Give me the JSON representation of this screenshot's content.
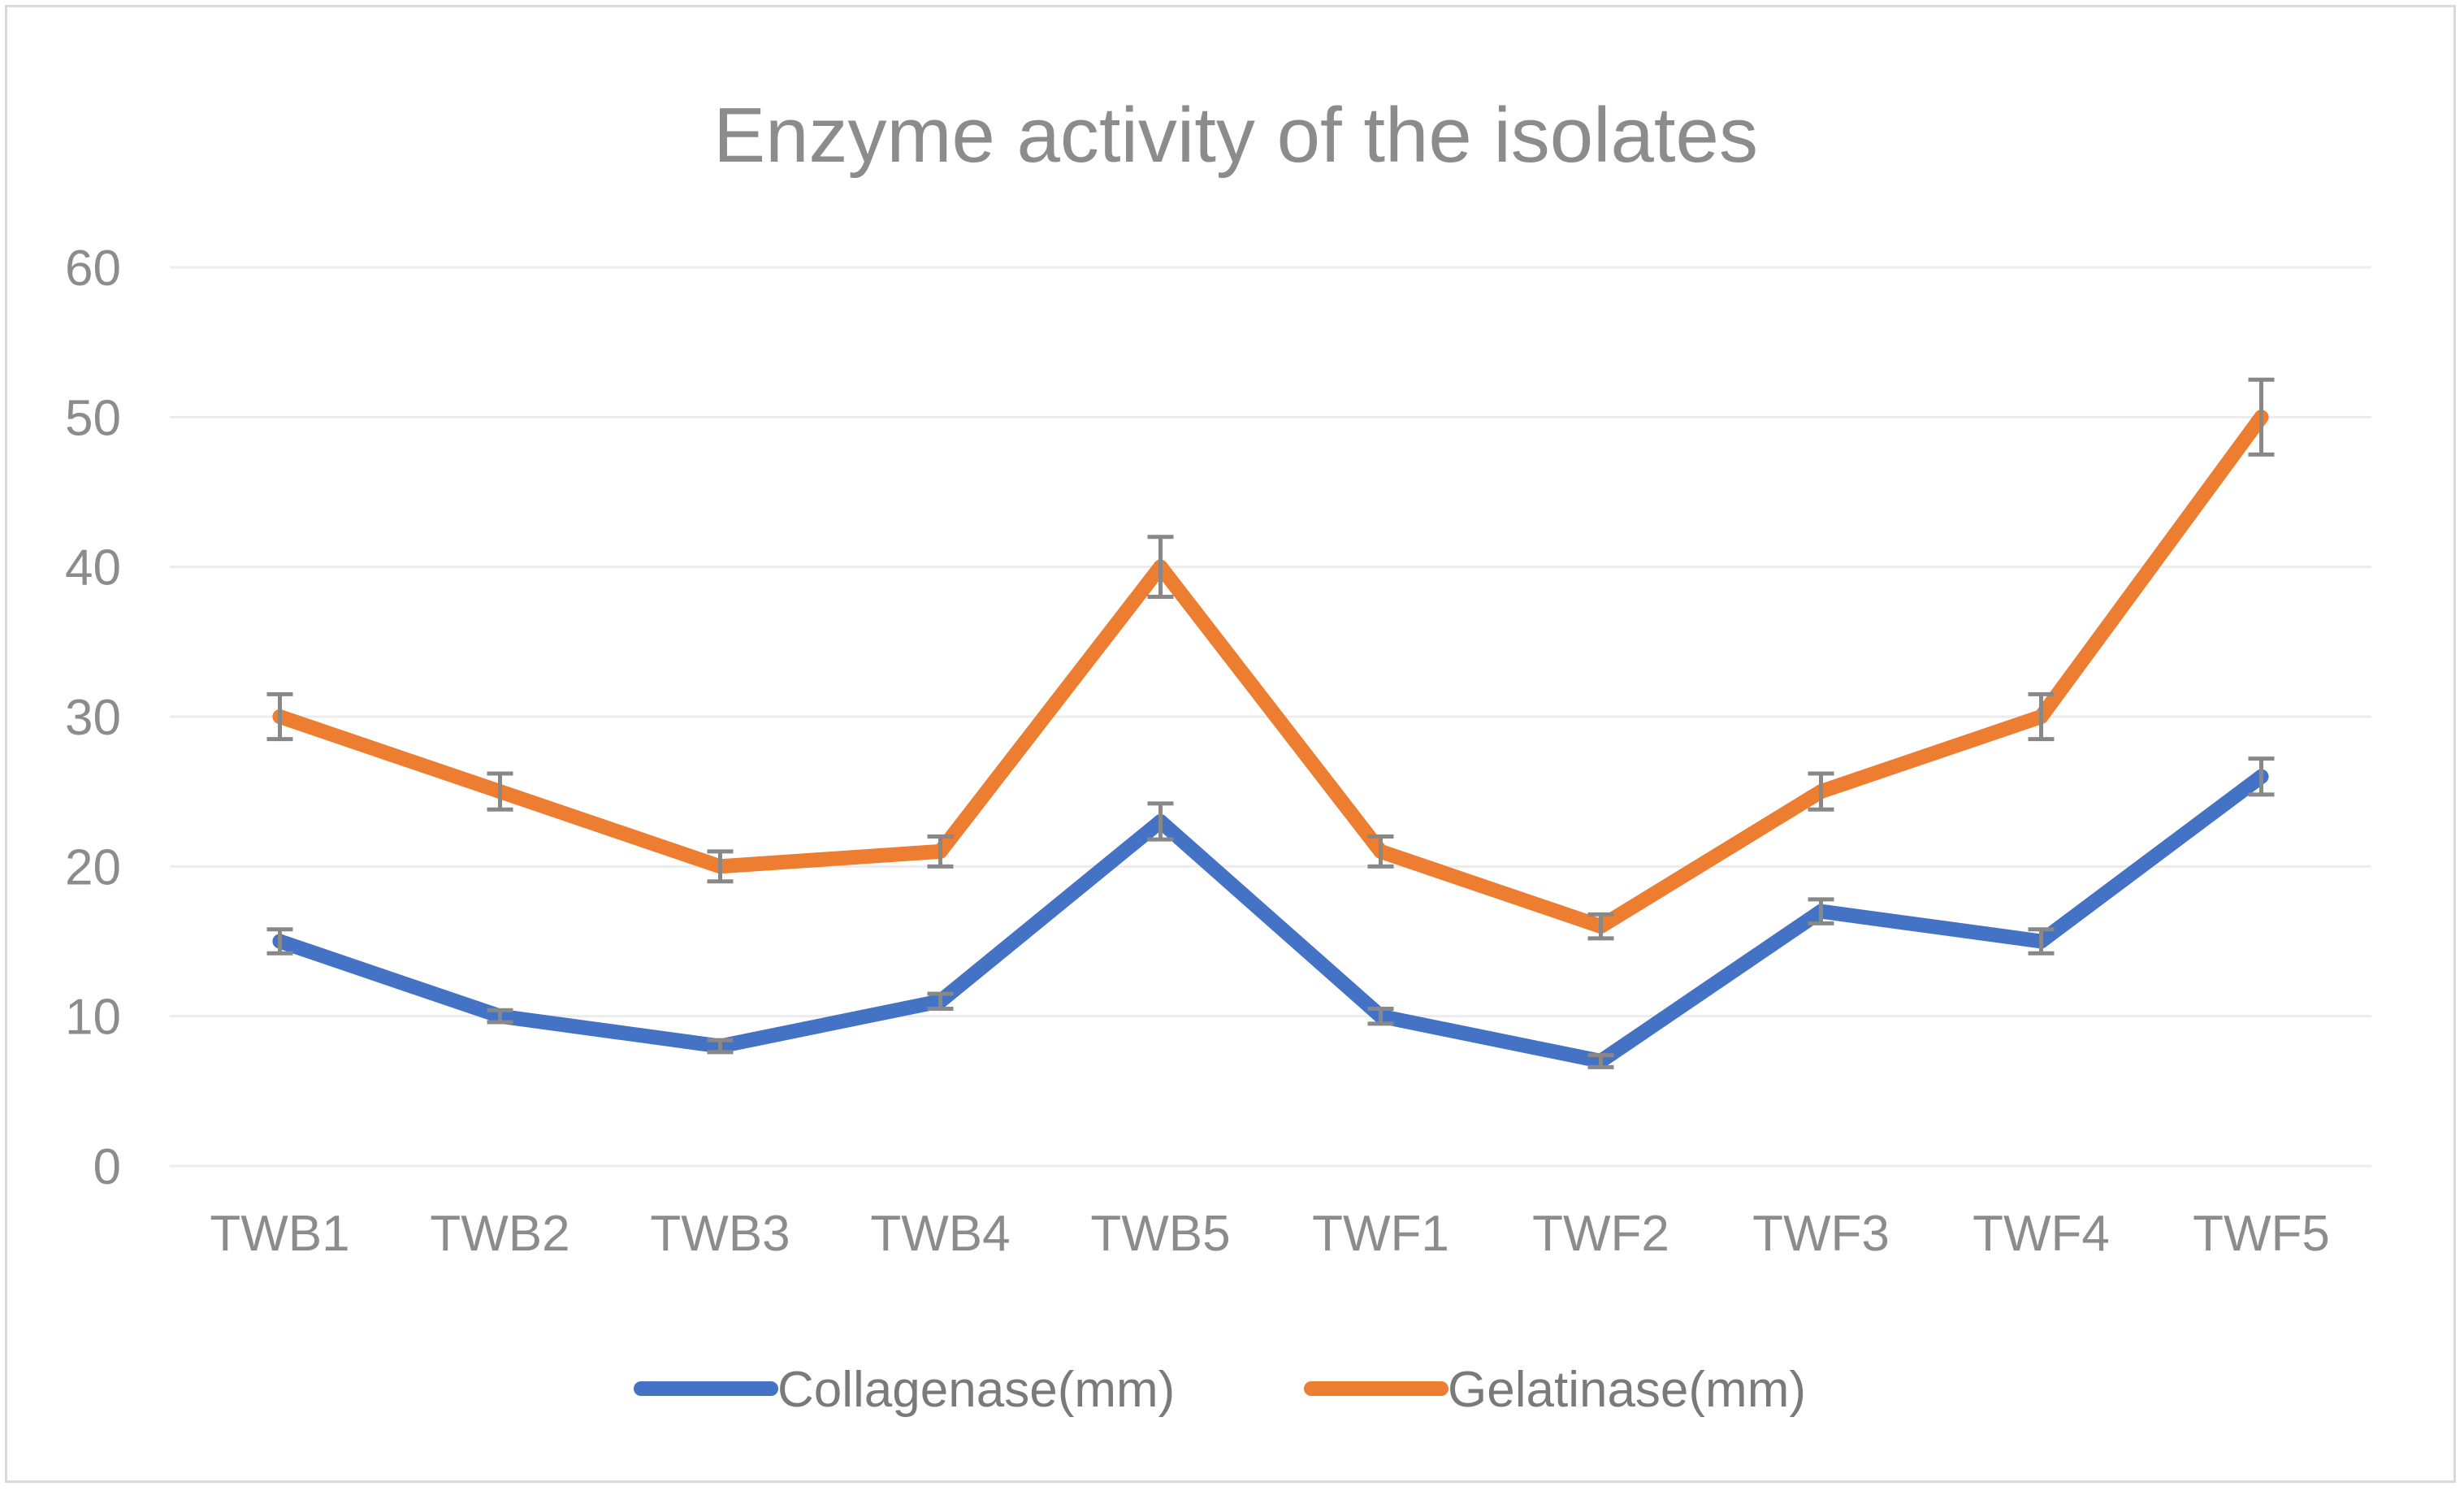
{
  "chart_data": {
    "type": "line",
    "title": "Enzyme activity of the isolates",
    "xlabel": "",
    "ylabel": "",
    "categories": [
      "TWB1",
      "TWB2",
      "TWB3",
      "TWB4",
      "TWB5",
      "TWF1",
      "TWF2",
      "TWF3",
      "TWF4",
      "TWF5"
    ],
    "ylim": [
      0,
      60
    ],
    "yticks": [
      0,
      10,
      20,
      30,
      40,
      50,
      60
    ],
    "grid": true,
    "legend": "bottom",
    "series": [
      {
        "name": "Collagenase(mm)",
        "color": "#4472c4",
        "values": [
          15,
          10,
          8,
          11,
          23,
          10,
          7,
          17,
          15,
          26
        ],
        "errors": [
          0.8,
          0.4,
          0.4,
          0.5,
          1.2,
          0.5,
          0.4,
          0.8,
          0.8,
          1.2
        ]
      },
      {
        "name": "Gelatinase(mm)",
        "color": "#ed7d31",
        "values": [
          30,
          25,
          20,
          21,
          40,
          21,
          16,
          25,
          30,
          50
        ],
        "errors": [
          1.5,
          1.2,
          1.0,
          1.0,
          2.0,
          1.0,
          0.8,
          1.2,
          1.5,
          2.5
        ]
      }
    ]
  }
}
